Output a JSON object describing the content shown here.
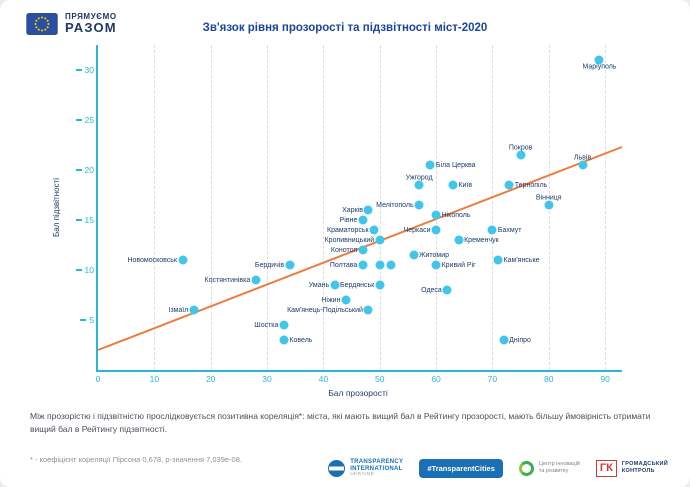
{
  "header": {
    "logo": {
      "line1": "ПРЯМУЄМО",
      "line2": "РАЗОМ",
      "icon": "eu-flag-icon"
    },
    "title": "Зв'язок рівня прозорості та підзвітності міст-2020"
  },
  "chart_data": {
    "type": "scatter",
    "title": "Зв'язок рівня прозорості та підзвітності міст-2020",
    "xlabel": "Бал прозорості",
    "ylabel": "Бал підзвітності",
    "xlim": [
      0,
      93
    ],
    "ylim": [
      0,
      32.5
    ],
    "x_ticks": [
      0,
      10,
      20,
      30,
      40,
      50,
      60,
      70,
      80,
      90
    ],
    "y_ticks": [
      5,
      10,
      15,
      20,
      25,
      30
    ],
    "grid": "vertical-dashed",
    "legend": "none",
    "point_color": "#41c6e9",
    "trend_color": "#ed7c3c",
    "axis_color": "#29b7d3",
    "trendline": {
      "x1": 0,
      "y1": 2,
      "x2": 93,
      "y2": 22.3
    },
    "points": [
      {
        "city": "Новомосковськ",
        "x": 15,
        "y": 11,
        "lp": "l"
      },
      {
        "city": "Ізмаїл",
        "x": 17,
        "y": 6,
        "lp": "l"
      },
      {
        "city": "Костянтинівка",
        "x": 28,
        "y": 9,
        "lp": "l"
      },
      {
        "city": "Бердичів",
        "x": 34,
        "y": 10.5,
        "lp": "l"
      },
      {
        "city": "Шостка",
        "x": 33,
        "y": 4.5,
        "lp": "l"
      },
      {
        "city": "Ковель",
        "x": 33,
        "y": 3,
        "lp": "r"
      },
      {
        "city": "Умань",
        "x": 42,
        "y": 8.5,
        "lp": "l"
      },
      {
        "city": "Ніжин",
        "x": 44,
        "y": 7,
        "lp": "l"
      },
      {
        "city": "Кам'янець-Подільський",
        "x": 48,
        "y": 6,
        "lp": "l"
      },
      {
        "city": "Полтава",
        "x": 47,
        "y": 10.5,
        "lp": "l"
      },
      {
        "city": "",
        "x": 50,
        "y": 10.5
      },
      {
        "city": "",
        "x": 52,
        "y": 10.5
      },
      {
        "city": "Бердянськ",
        "x": 50,
        "y": 8.5,
        "lp": "l"
      },
      {
        "city": "Конотоп",
        "x": 47,
        "y": 12,
        "lp": "l"
      },
      {
        "city": "Кропивницький",
        "x": 50,
        "y": 13,
        "lp": "l"
      },
      {
        "city": "Краматорськ",
        "x": 49,
        "y": 14,
        "lp": "l"
      },
      {
        "city": "Рівне",
        "x": 47,
        "y": 15,
        "lp": "l"
      },
      {
        "city": "Харків",
        "x": 48,
        "y": 16,
        "lp": "l"
      },
      {
        "city": "Мелітополь",
        "x": 57,
        "y": 16.5,
        "lp": "l"
      },
      {
        "city": "Ужгород",
        "x": 57,
        "y": 18.5,
        "lp": "a"
      },
      {
        "city": "Київ",
        "x": 63,
        "y": 18.5,
        "lp": "r"
      },
      {
        "city": "Біла Церква",
        "x": 59,
        "y": 20.5,
        "lp": "r"
      },
      {
        "city": "Нікополь",
        "x": 60,
        "y": 15.5,
        "lp": "r"
      },
      {
        "city": "Черкаси",
        "x": 60,
        "y": 14,
        "lp": "l"
      },
      {
        "city": "Кременчук",
        "x": 64,
        "y": 13,
        "lp": "r"
      },
      {
        "city": "Житомир",
        "x": 56,
        "y": 11.5,
        "lp": "r"
      },
      {
        "city": "Кривий Ріг",
        "x": 60,
        "y": 10.5,
        "lp": "r"
      },
      {
        "city": "Одеса",
        "x": 62,
        "y": 8,
        "lp": "l"
      },
      {
        "city": "Бахмут",
        "x": 70,
        "y": 14,
        "lp": "r"
      },
      {
        "city": "Кам'янське",
        "x": 71,
        "y": 11,
        "lp": "r"
      },
      {
        "city": "Тернопіль",
        "x": 73,
        "y": 18.5,
        "lp": "r"
      },
      {
        "city": "Вінниця",
        "x": 80,
        "y": 16.5,
        "lp": "a"
      },
      {
        "city": "Покров",
        "x": 75,
        "y": 21.5,
        "lp": "a"
      },
      {
        "city": "Львів",
        "x": 86,
        "y": 20.5,
        "lp": "a"
      },
      {
        "city": "Маріуполь",
        "x": 89,
        "y": 31,
        "lp": "b"
      },
      {
        "city": "Дніпро",
        "x": 72,
        "y": 3,
        "lp": "r"
      }
    ]
  },
  "footer": {
    "note": "Між прозорістю і підзвітністю прослідковується позитивна кореляція*: міста, які мають вищий бал в Рейтингу прозорості, мають більшу ймовірність отримати вищий бал в Рейтингу підзвітності.",
    "footnote": "* - коефіцієнт кореляції Пірсона 0,678, p-значення 7,039е-08.",
    "logos": [
      {
        "name": "transparency-international",
        "line1": "TRANSPARENCY",
        "line2": "INTERNATIONAL",
        "line3": "UKRAINE"
      },
      {
        "name": "transparent-cities",
        "label": "#TransparentCities"
      },
      {
        "name": "innovation-center",
        "line1": "Центр інновацій",
        "line2": "та розвитку"
      },
      {
        "name": "hromadskyi-kontrol",
        "abbr": "ГК",
        "line1": "ГРОМАДСЬКИЙ",
        "line2": "КОНТРОЛЬ"
      }
    ]
  }
}
